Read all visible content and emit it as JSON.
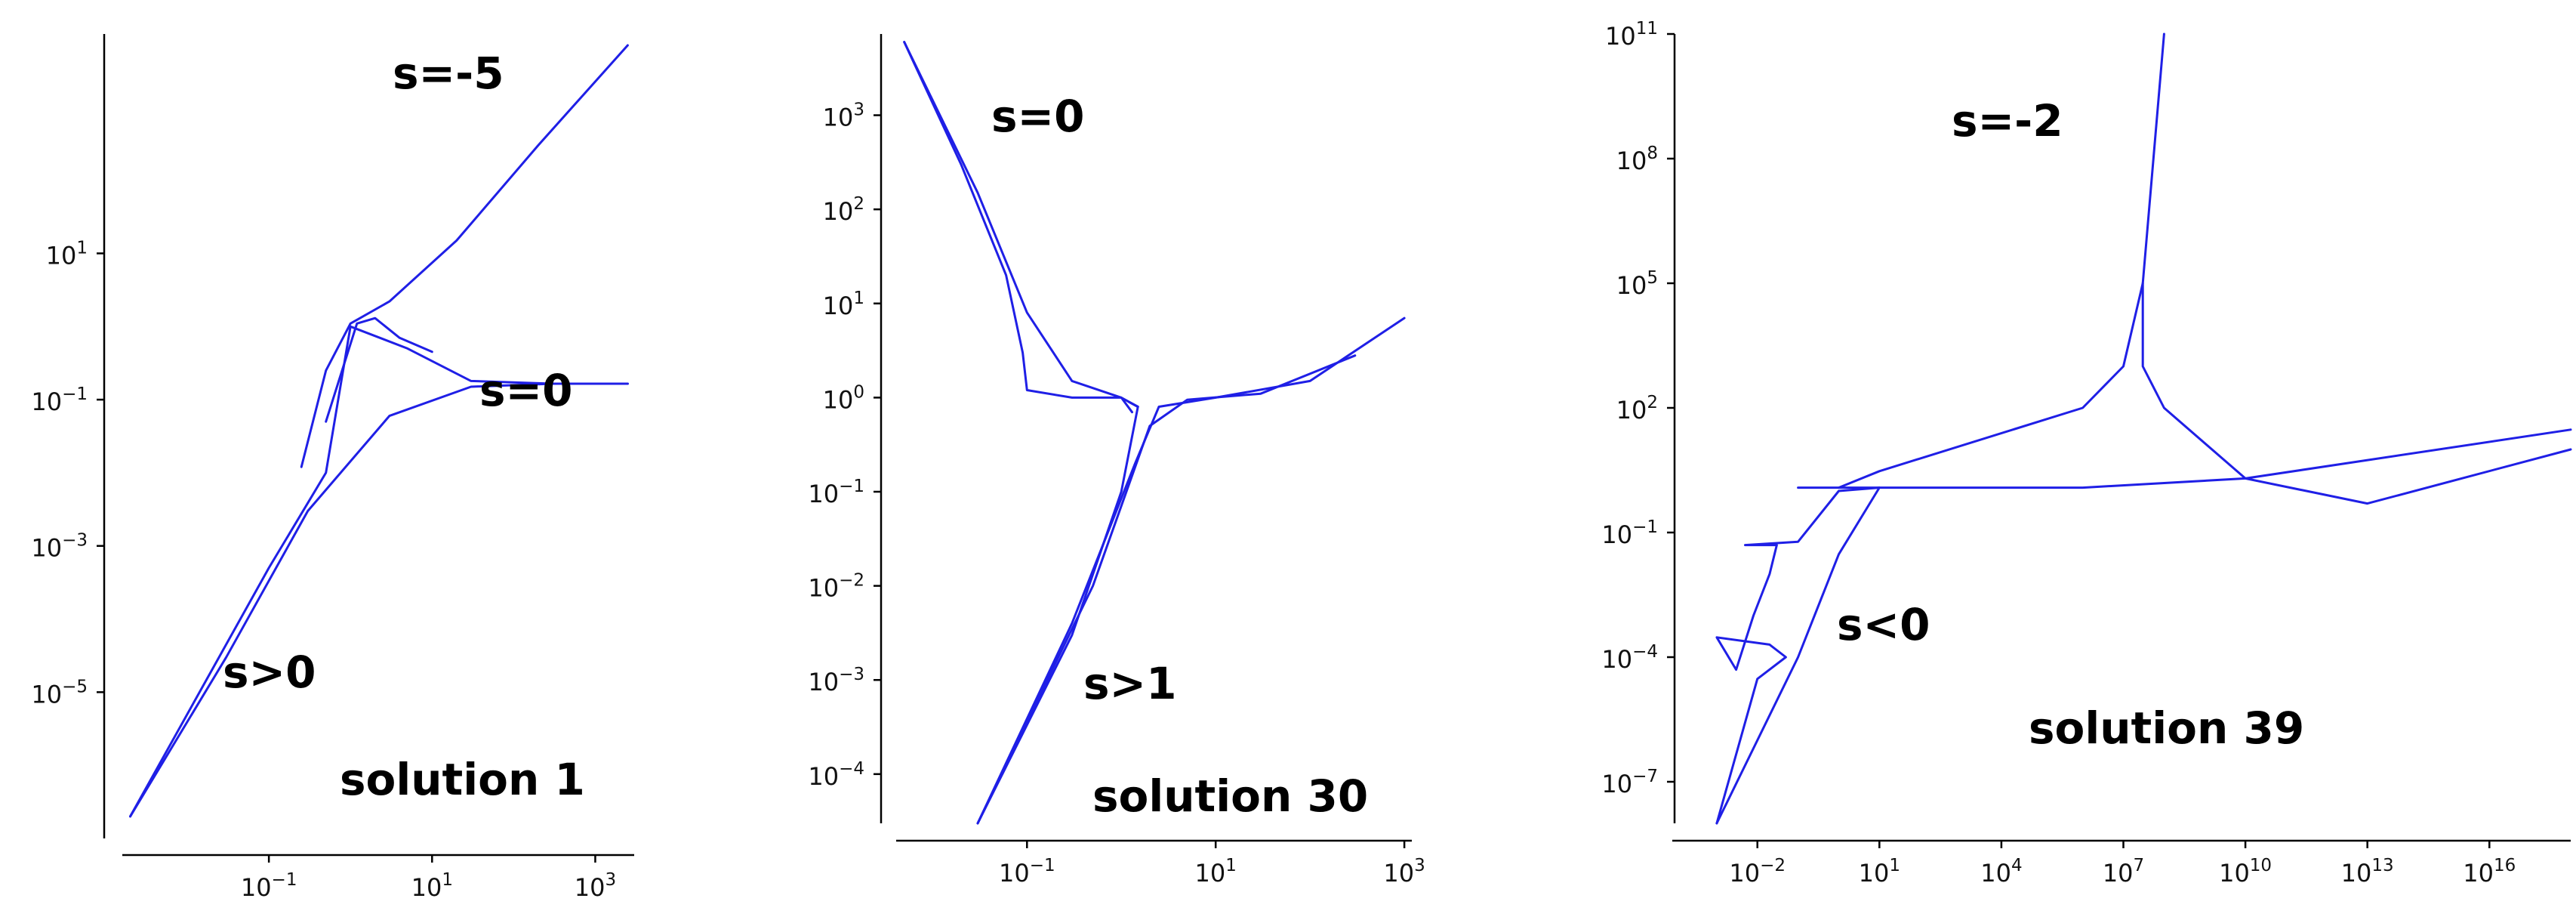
{
  "chart_data": [
    {
      "type": "line",
      "scale": "log-log",
      "title": "",
      "xlabel": "",
      "ylabel": "",
      "xlim": [
        0.001,
        3000
      ],
      "ylim": [
        1e-07,
        10000
      ],
      "x_ticks": [
        {
          "base": "10",
          "exp": "−1"
        },
        {
          "base": "10",
          "exp": "1"
        },
        {
          "base": "10",
          "exp": "3"
        }
      ],
      "y_ticks": [
        {
          "base": "10",
          "exp": "1"
        },
        {
          "base": "10",
          "exp": "−1"
        },
        {
          "base": "10",
          "exp": "−3"
        },
        {
          "base": "10",
          "exp": "−5"
        }
      ],
      "grid": false,
      "line_color": "#1f1fe6",
      "annotations": [
        "s=-5",
        "s=0",
        "s>0",
        "solution 1"
      ],
      "series": [
        {
          "points": [
            [
              0.002,
              2e-07
            ],
            [
              0.03,
              3e-05
            ],
            [
              0.3,
              0.003
            ],
            [
              3,
              0.06
            ],
            [
              30,
              0.15
            ],
            [
              300,
              0.165
            ],
            [
              2500,
              0.165
            ]
          ]
        },
        {
          "points": [
            [
              0.002,
              2e-07
            ],
            [
              0.1,
              0.0005
            ],
            [
              0.5,
              0.01
            ],
            [
              1,
              1.0
            ],
            [
              5,
              0.5
            ],
            [
              30,
              0.18
            ],
            [
              300,
              0.165
            ],
            [
              2500,
              0.165
            ]
          ]
        },
        {
          "points": [
            [
              0.25,
              0.012
            ],
            [
              0.5,
              0.25
            ],
            [
              1,
              1.1
            ],
            [
              3,
              2.2
            ],
            [
              20,
              15
            ],
            [
              200,
              300
            ],
            [
              2500,
              7000
            ]
          ]
        },
        {
          "points": [
            [
              0.5,
              0.05
            ],
            [
              1.2,
              1.1
            ],
            [
              2,
              1.3
            ],
            [
              4,
              0.7
            ],
            [
              10,
              0.45
            ]
          ]
        }
      ]
    },
    {
      "type": "line",
      "scale": "log-log",
      "title": "",
      "xlabel": "",
      "ylabel": "",
      "xlim": [
        0.003,
        1200
      ],
      "ylim": [
        3e-05,
        8000
      ],
      "x_ticks": [
        {
          "base": "10",
          "exp": "−1"
        },
        {
          "base": "10",
          "exp": "1"
        },
        {
          "base": "10",
          "exp": "3"
        }
      ],
      "y_ticks": [
        {
          "base": "10",
          "exp": "3"
        },
        {
          "base": "10",
          "exp": "2"
        },
        {
          "base": "10",
          "exp": "1"
        },
        {
          "base": "10",
          "exp": "0"
        },
        {
          "base": "10",
          "exp": "−1"
        },
        {
          "base": "10",
          "exp": "−2"
        },
        {
          "base": "10",
          "exp": "−3"
        },
        {
          "base": "10",
          "exp": "−4"
        }
      ],
      "grid": false,
      "line_color": "#1f1fe6",
      "annotations": [
        "s=0",
        "s>1",
        "s>1",
        "solution 30"
      ],
      "series": [
        {
          "points": [
            [
              0.005,
              6000
            ],
            [
              0.02,
              300
            ],
            [
              0.06,
              20
            ],
            [
              0.09,
              3
            ],
            [
              0.1,
              1.2
            ],
            [
              0.3,
              1.0
            ],
            [
              1,
              1.0
            ],
            [
              1.5,
              0.8
            ]
          ]
        },
        {
          "points": [
            [
              0.005,
              6000
            ],
            [
              0.03,
              150
            ],
            [
              0.1,
              8
            ],
            [
              0.3,
              1.5
            ],
            [
              1,
              1.0
            ],
            [
              1.3,
              0.7
            ]
          ]
        },
        {
          "points": [
            [
              0.03,
              3e-05
            ],
            [
              0.3,
              0.003
            ],
            [
              1,
              0.1
            ],
            [
              1.5,
              0.8
            ],
            [
              1.2,
              0.9
            ]
          ]
        },
        {
          "points": [
            [
              0.03,
              3e-05
            ],
            [
              0.3,
              0.004
            ],
            [
              1.4,
              0.2
            ],
            [
              2.5,
              0.8
            ],
            [
              10,
              1.0
            ],
            [
              100,
              1.5
            ],
            [
              1000,
              7
            ]
          ]
        },
        {
          "points": [
            [
              0.03,
              3e-05
            ],
            [
              0.5,
              0.01
            ],
            [
              2,
              0.5
            ],
            [
              5,
              0.95
            ],
            [
              30,
              1.1
            ],
            [
              300,
              2.8
            ]
          ]
        }
      ]
    },
    {
      "type": "line",
      "scale": "log-log",
      "title": "",
      "xlabel": "",
      "ylabel": "",
      "xlim": [
        0.0001,
        1000000000000000000
      ],
      "ylim": [
        1e-08,
        100000000000
      ],
      "x_ticks": [
        {
          "base": "10",
          "exp": "−2"
        },
        {
          "base": "10",
          "exp": "1"
        },
        {
          "base": "10",
          "exp": "4"
        },
        {
          "base": "10",
          "exp": "7"
        },
        {
          "base": "10",
          "exp": "10"
        },
        {
          "base": "10",
          "exp": "13"
        },
        {
          "base": "10",
          "exp": "16"
        }
      ],
      "y_ticks": [
        {
          "base": "10",
          "exp": "11"
        },
        {
          "base": "10",
          "exp": "8"
        },
        {
          "base": "10",
          "exp": "5"
        },
        {
          "base": "10",
          "exp": "2"
        },
        {
          "base": "10",
          "exp": "−1"
        },
        {
          "base": "10",
          "exp": "−4"
        },
        {
          "base": "10",
          "exp": "−7"
        }
      ],
      "grid": false,
      "line_color": "#1f1fe6",
      "annotations": [
        "s=-2",
        "s<0",
        "solution 39"
      ],
      "series": [
        {
          "points": [
            [
              0.001,
              1e-08
            ],
            [
              0.01,
              3e-05
            ],
            [
              0.05,
              0.0001
            ],
            [
              0.02,
              0.0002
            ],
            [
              0.001,
              0.0003
            ],
            [
              0.003,
              5e-05
            ],
            [
              0.008,
              0.001
            ],
            [
              0.02,
              0.01
            ],
            [
              0.03,
              0.05
            ],
            [
              0.005,
              0.05
            ],
            [
              0.1,
              0.06
            ],
            [
              1,
              1.0
            ],
            [
              10,
              1.2
            ]
          ]
        },
        {
          "points": [
            [
              0.001,
              1e-08
            ],
            [
              0.1,
              0.0001
            ],
            [
              1,
              0.03
            ],
            [
              10,
              1.2
            ]
          ]
        },
        {
          "points": [
            [
              1,
              1.2
            ],
            [
              10,
              3
            ],
            [
              1000000,
              100
            ],
            [
              10000000,
              1000
            ],
            [
              30000000,
              100000
            ],
            [
              100000000,
              100000000000
            ]
          ]
        },
        {
          "points": [
            [
              30000000,
              100000
            ],
            [
              30000000,
              1000
            ],
            [
              100000000,
              100
            ],
            [
              10000000000,
              2
            ],
            [
              10000000000000,
              0.5
            ],
            [
              1000000000000000000,
              10
            ]
          ]
        },
        {
          "points": [
            [
              0.1,
              1.2
            ],
            [
              1000000,
              1.2
            ],
            [
              10000000000,
              2
            ],
            [
              1000000000000000000,
              30
            ]
          ]
        }
      ]
    }
  ]
}
